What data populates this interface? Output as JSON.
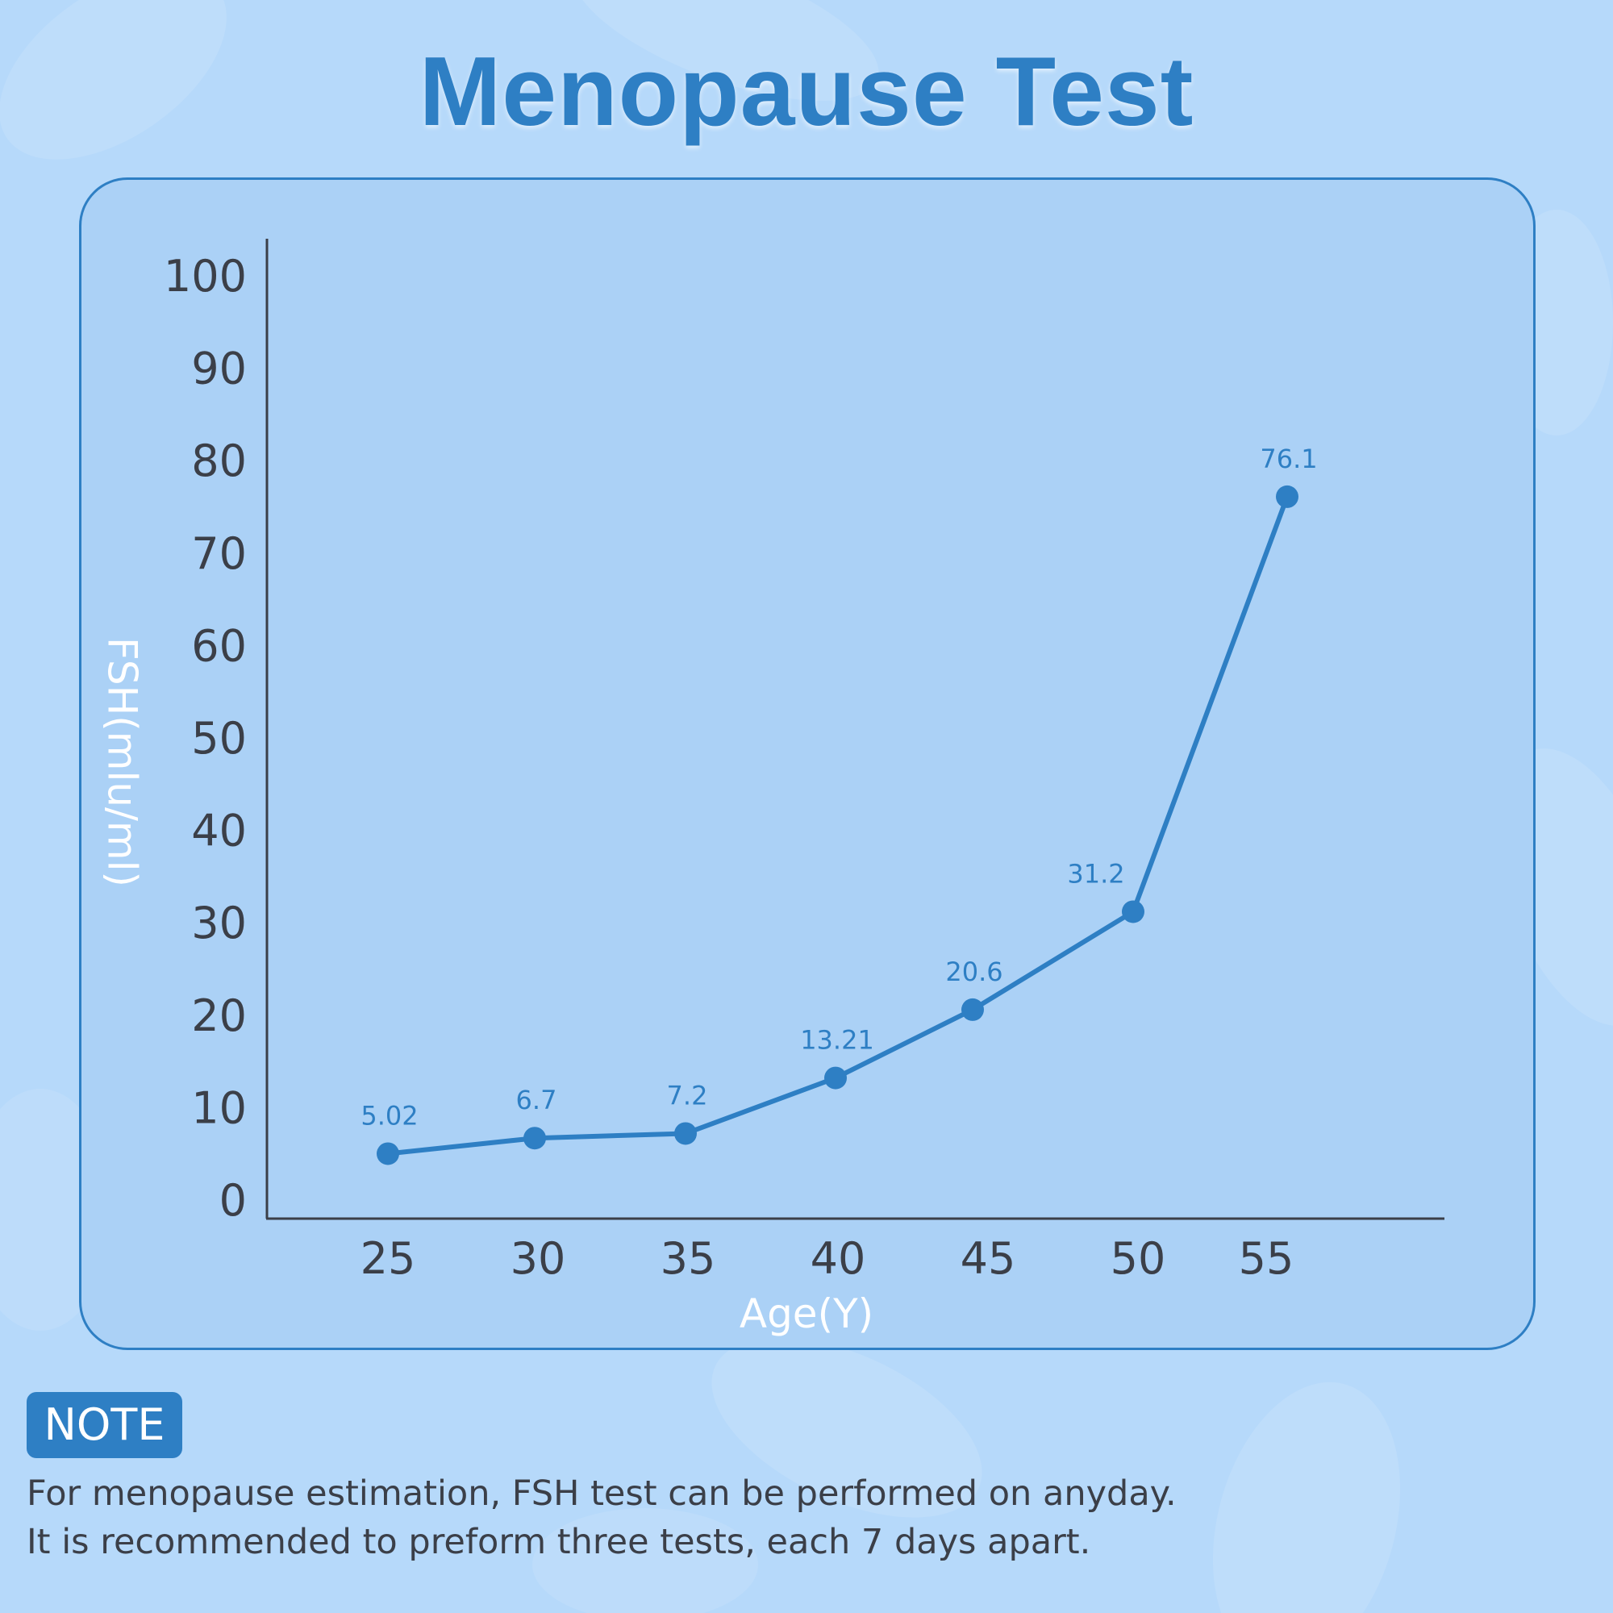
{
  "title": "Menopause Test",
  "colors": {
    "background": "#b6d9fa",
    "card": "#abd1f6",
    "accent": "#2e7fc4",
    "axis": "#3b3f48",
    "axis_title": "#ffffff"
  },
  "chart_data": {
    "type": "line",
    "x": [
      25,
      30,
      35,
      40,
      45,
      50,
      55
    ],
    "x_tick_labels": [
      "25",
      "30",
      "35",
      "40",
      "45",
      "50",
      "55"
    ],
    "series": [
      {
        "values": [
          5.02,
          6.7,
          7.2,
          13.21,
          20.6,
          31.2,
          76.1
        ],
        "data_labels": [
          "5.02",
          "6.7",
          "7.2",
          "13.21",
          "20.6",
          "31.2",
          "76.1"
        ]
      }
    ],
    "y_ticks": [
      0,
      10,
      20,
      30,
      40,
      50,
      60,
      70,
      80,
      90,
      100
    ],
    "xlabel": "Age(Y)",
    "ylabel": "FSH(mlu/ml)",
    "ylim": [
      0,
      100
    ],
    "grid": false
  },
  "note": {
    "badge": "NOTE",
    "line1": "For menopause estimation, FSH test can be performed on anyday.",
    "line2": "It is recommended to preform three tests, each 7 days apart."
  }
}
